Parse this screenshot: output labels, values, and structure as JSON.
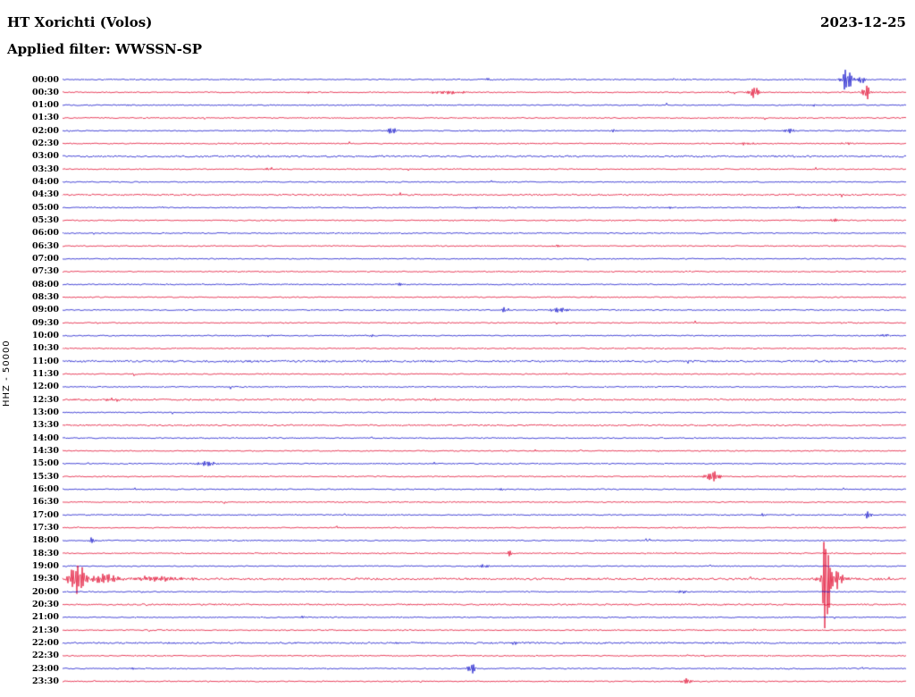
{
  "header": {
    "station": "HT Xorichti (Volos)",
    "date": "2023-12-25",
    "filter_label": "Applied filter: WWSSN-SP"
  },
  "axis": {
    "ylabel": "HHZ - 50000"
  },
  "colors": {
    "blue": "#0a0ac8",
    "red": "#e00028",
    "background": "#ffffff",
    "text": "#000000"
  },
  "chart_data": {
    "type": "line",
    "title": "HT Xorichti (Volos)",
    "subtitle": "Applied filter: WWSSN-SP",
    "date": "2023-12-25",
    "ylabel": "HHZ - 50000",
    "x_axis": "30 minutes per trace row, 48 rows covering 24 hours",
    "legend_position": "none",
    "grid": false,
    "rows": [
      {
        "label": "00:00",
        "color": "blue",
        "noise": 0.6,
        "events": [
          {
            "x": 0.505,
            "amp": 2,
            "w": 0.004
          },
          {
            "x": 0.93,
            "amp": 16,
            "w": 0.006
          },
          {
            "x": 0.947,
            "amp": 6,
            "w": 0.004
          }
        ]
      },
      {
        "label": "00:30",
        "color": "red",
        "noise": 0.6,
        "events": [
          {
            "x": 0.29,
            "amp": 1.5,
            "w": 0.003
          },
          {
            "x": 0.455,
            "amp": 2.5,
            "w": 0.02
          },
          {
            "x": 0.82,
            "amp": 8,
            "w": 0.006
          },
          {
            "x": 0.953,
            "amp": 9,
            "w": 0.005
          }
        ]
      },
      {
        "label": "01:00",
        "color": "blue",
        "noise": 0.6,
        "events": [
          {
            "x": 0.08,
            "amp": 1.2,
            "w": 0.004
          },
          {
            "x": 0.89,
            "amp": 1.5,
            "w": 0.004
          }
        ]
      },
      {
        "label": "01:30",
        "color": "red",
        "noise": 0.6,
        "events": []
      },
      {
        "label": "02:00",
        "color": "blue",
        "noise": 0.6,
        "events": [
          {
            "x": 0.39,
            "amp": 5,
            "w": 0.005
          },
          {
            "x": 0.655,
            "amp": 2.5,
            "w": 0.004
          },
          {
            "x": 0.862,
            "amp": 4,
            "w": 0.005
          }
        ]
      },
      {
        "label": "02:30",
        "color": "red",
        "noise": 0.6,
        "events": [
          {
            "x": 0.81,
            "amp": 1.5,
            "w": 0.01
          },
          {
            "x": 0.93,
            "amp": 1.5,
            "w": 0.008
          }
        ]
      },
      {
        "label": "03:00",
        "color": "blue",
        "noise": 0.9,
        "events": [
          {
            "x": 0.24,
            "amp": 1.5,
            "w": 0.005
          }
        ]
      },
      {
        "label": "03:30",
        "color": "red",
        "noise": 0.6,
        "events": [
          {
            "x": 0.245,
            "amp": 2,
            "w": 0.004
          }
        ]
      },
      {
        "label": "04:00",
        "color": "blue",
        "noise": 0.6,
        "events": []
      },
      {
        "label": "04:30",
        "color": "red",
        "noise": 0.8,
        "events": []
      },
      {
        "label": "05:00",
        "color": "blue",
        "noise": 0.6,
        "events": [
          {
            "x": 0.49,
            "amp": 1.5,
            "w": 0.004
          },
          {
            "x": 0.72,
            "amp": 1.5,
            "w": 0.004
          },
          {
            "x": 0.875,
            "amp": 2,
            "w": 0.005
          }
        ]
      },
      {
        "label": "05:30",
        "color": "red",
        "noise": 0.6,
        "events": [
          {
            "x": 0.915,
            "amp": 2,
            "w": 0.005
          }
        ]
      },
      {
        "label": "06:00",
        "color": "blue",
        "noise": 0.6,
        "events": []
      },
      {
        "label": "06:30",
        "color": "red",
        "noise": 0.6,
        "events": [
          {
            "x": 0.585,
            "amp": 1.5,
            "w": 0.004
          }
        ]
      },
      {
        "label": "07:00",
        "color": "blue",
        "noise": 0.6,
        "events": []
      },
      {
        "label": "07:30",
        "color": "red",
        "noise": 0.6,
        "events": []
      },
      {
        "label": "08:00",
        "color": "blue",
        "noise": 0.6,
        "events": [
          {
            "x": 0.4,
            "amp": 2,
            "w": 0.005
          }
        ]
      },
      {
        "label": "08:30",
        "color": "red",
        "noise": 0.6,
        "events": []
      },
      {
        "label": "09:00",
        "color": "blue",
        "noise": 0.6,
        "events": [
          {
            "x": 0.525,
            "amp": 3,
            "w": 0.005
          },
          {
            "x": 0.59,
            "amp": 3,
            "w": 0.012
          }
        ]
      },
      {
        "label": "09:30",
        "color": "red",
        "noise": 0.6,
        "events": []
      },
      {
        "label": "10:00",
        "color": "blue",
        "noise": 0.6,
        "events": [
          {
            "x": 0.245,
            "amp": 1.5,
            "w": 0.004
          },
          {
            "x": 0.365,
            "amp": 1.5,
            "w": 0.004
          },
          {
            "x": 0.975,
            "amp": 2,
            "w": 0.005
          }
        ]
      },
      {
        "label": "10:30",
        "color": "red",
        "noise": 0.6,
        "events": [
          {
            "x": 0.19,
            "amp": 1.2,
            "w": 0.004
          }
        ]
      },
      {
        "label": "11:00",
        "color": "blue",
        "noise": 1.0,
        "events": []
      },
      {
        "label": "11:30",
        "color": "red",
        "noise": 0.6,
        "events": []
      },
      {
        "label": "12:00",
        "color": "blue",
        "noise": 0.6,
        "events": []
      },
      {
        "label": "12:30",
        "color": "red",
        "noise": 0.9,
        "events": [
          {
            "x": 0.06,
            "amp": 2,
            "w": 0.01
          }
        ]
      },
      {
        "label": "13:00",
        "color": "blue",
        "noise": 0.6,
        "events": []
      },
      {
        "label": "13:30",
        "color": "red",
        "noise": 0.8,
        "events": []
      },
      {
        "label": "14:00",
        "color": "blue",
        "noise": 0.6,
        "events": []
      },
      {
        "label": "14:30",
        "color": "red",
        "noise": 0.6,
        "events": []
      },
      {
        "label": "15:00",
        "color": "blue",
        "noise": 0.6,
        "events": [
          {
            "x": 0.17,
            "amp": 3,
            "w": 0.012
          }
        ]
      },
      {
        "label": "15:30",
        "color": "red",
        "noise": 0.6,
        "events": [
          {
            "x": 0.77,
            "amp": 8,
            "w": 0.008
          }
        ]
      },
      {
        "label": "16:00",
        "color": "blue",
        "noise": 0.6,
        "events": [
          {
            "x": 0.52,
            "amp": 2,
            "w": 0.004
          }
        ]
      },
      {
        "label": "16:30",
        "color": "red",
        "noise": 0.6,
        "events": []
      },
      {
        "label": "17:00",
        "color": "blue",
        "noise": 0.6,
        "events": [
          {
            "x": 0.83,
            "amp": 1.5,
            "w": 0.004
          },
          {
            "x": 0.955,
            "amp": 5,
            "w": 0.004
          }
        ]
      },
      {
        "label": "17:30",
        "color": "red",
        "noise": 0.6,
        "events": []
      },
      {
        "label": "18:00",
        "color": "blue",
        "noise": 0.6,
        "events": [
          {
            "x": 0.035,
            "amp": 4,
            "w": 0.005
          }
        ]
      },
      {
        "label": "18:30",
        "color": "red",
        "noise": 0.6,
        "events": [
          {
            "x": 0.53,
            "amp": 4,
            "w": 0.004
          }
        ]
      },
      {
        "label": "19:00",
        "color": "blue",
        "noise": 0.6,
        "events": [
          {
            "x": 0.5,
            "amp": 2.5,
            "w": 0.005
          }
        ]
      },
      {
        "label": "19:30",
        "color": "red",
        "noise": 1.1,
        "events": [
          {
            "x": 0.018,
            "amp": 20,
            "w": 0.01
          },
          {
            "x": 0.05,
            "amp": 7,
            "w": 0.02
          },
          {
            "x": 0.11,
            "amp": 3,
            "w": 0.04
          },
          {
            "x": 0.905,
            "amp": 110,
            "w": 0.0035
          },
          {
            "x": 0.912,
            "amp": 13,
            "w": 0.014
          }
        ]
      },
      {
        "label": "20:00",
        "color": "blue",
        "noise": 0.6,
        "events": [
          {
            "x": 0.735,
            "amp": 2.5,
            "w": 0.005
          }
        ]
      },
      {
        "label": "20:30",
        "color": "red",
        "noise": 0.8,
        "events": []
      },
      {
        "label": "21:00",
        "color": "blue",
        "noise": 0.6,
        "events": [
          {
            "x": 0.285,
            "amp": 1.8,
            "w": 0.004
          }
        ]
      },
      {
        "label": "21:30",
        "color": "red",
        "noise": 0.6,
        "events": []
      },
      {
        "label": "22:00",
        "color": "blue",
        "noise": 0.9,
        "events": [
          {
            "x": 0.535,
            "amp": 2.5,
            "w": 0.004
          }
        ]
      },
      {
        "label": "22:30",
        "color": "red",
        "noise": 0.6,
        "events": []
      },
      {
        "label": "23:00",
        "color": "blue",
        "noise": 0.6,
        "events": [
          {
            "x": 0.085,
            "amp": 1.5,
            "w": 0.004
          },
          {
            "x": 0.485,
            "amp": 6,
            "w": 0.005
          }
        ]
      },
      {
        "label": "23:30",
        "color": "red",
        "noise": 0.6,
        "events": [
          {
            "x": 0.74,
            "amp": 4,
            "w": 0.006
          }
        ]
      }
    ]
  }
}
